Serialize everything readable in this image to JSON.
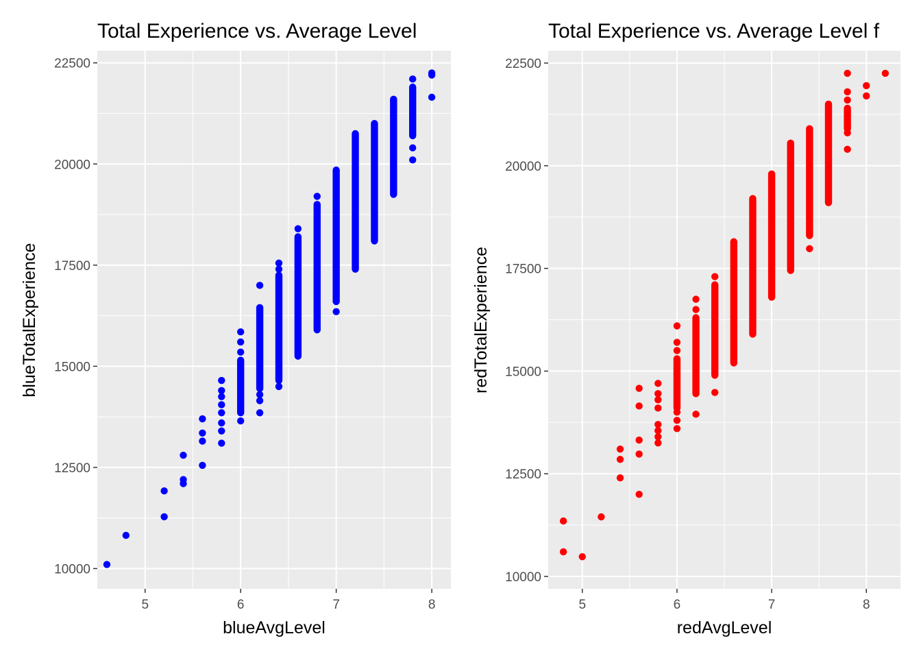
{
  "chart_data": [
    {
      "type": "scatter",
      "title": "Total Experience vs. Average Level",
      "xlabel": "blueAvgLevel",
      "ylabel": "blueTotalExperience",
      "color": "#0000ff",
      "xlim": [
        4.5,
        8.2
      ],
      "ylim": [
        9500,
        22800
      ],
      "xticks": [
        5,
        6,
        7,
        8
      ],
      "yticks": [
        10000,
        12500,
        15000,
        17500,
        20000,
        22500
      ],
      "grid": true,
      "legend": "none",
      "x_groups": [
        {
          "x": 4.6,
          "points": [
            10100
          ]
        },
        {
          "x": 4.8,
          "points": [
            10820
          ]
        },
        {
          "x": 5.2,
          "points": [
            11280,
            11920
          ]
        },
        {
          "x": 5.4,
          "points": [
            12100,
            12200,
            12800
          ]
        },
        {
          "x": 5.6,
          "points": [
            12550,
            13150,
            13350,
            13700
          ]
        },
        {
          "x": 5.8,
          "points": [
            13100,
            13400,
            13600,
            13850,
            14050,
            14250,
            14400,
            14650
          ]
        },
        {
          "x": 6.0,
          "points": [
            13650,
            15350,
            15600,
            15850
          ],
          "range": [
            13850,
            15150
          ]
        },
        {
          "x": 6.2,
          "points": [
            13850,
            14150,
            14300,
            17000
          ],
          "range": [
            14450,
            16450
          ]
        },
        {
          "x": 6.4,
          "points": [
            14500,
            17400,
            17550
          ],
          "range": [
            14650,
            17250
          ]
        },
        {
          "x": 6.6,
          "points": [
            18400
          ],
          "range": [
            15250,
            18200
          ]
        },
        {
          "x": 6.8,
          "points": [
            19200
          ],
          "range": [
            15900,
            19000
          ]
        },
        {
          "x": 7.0,
          "points": [
            16350
          ],
          "range": [
            16600,
            19850
          ]
        },
        {
          "x": 7.2,
          "points": [],
          "range": [
            17400,
            20750
          ]
        },
        {
          "x": 7.4,
          "points": [],
          "range": [
            18100,
            21000
          ]
        },
        {
          "x": 7.6,
          "points": [],
          "range": [
            19250,
            21600
          ]
        },
        {
          "x": 7.8,
          "points": [
            20100,
            20400,
            22100
          ],
          "range": [
            20700,
            21900
          ]
        },
        {
          "x": 8.0,
          "points": [
            21650,
            22200,
            22250
          ]
        }
      ]
    },
    {
      "type": "scatter",
      "title": "Total Experience vs. Average Level f",
      "xlabel": "redAvgLevel",
      "ylabel": "redTotalExperience",
      "color": "#ff0000",
      "xlim": [
        4.64,
        8.36
      ],
      "ylim": [
        9700,
        22800
      ],
      "xticks": [
        5,
        6,
        7,
        8
      ],
      "yticks": [
        10000,
        12500,
        15000,
        17500,
        20000,
        22500
      ],
      "grid": true,
      "legend": "none",
      "x_groups": [
        {
          "x": 4.8,
          "points": [
            10600,
            11350
          ]
        },
        {
          "x": 5.0,
          "points": [
            10480
          ]
        },
        {
          "x": 5.2,
          "points": [
            11450
          ]
        },
        {
          "x": 5.4,
          "points": [
            12400,
            12850,
            13100
          ]
        },
        {
          "x": 5.6,
          "points": [
            12000,
            12980,
            13320,
            14150,
            14580
          ]
        },
        {
          "x": 5.8,
          "points": [
            13250,
            13400,
            13550,
            13700,
            14100,
            14300,
            14450,
            14700
          ]
        },
        {
          "x": 6.0,
          "points": [
            13600,
            13800,
            14000,
            15500,
            15700,
            16100
          ],
          "range": [
            14100,
            15300
          ]
        },
        {
          "x": 6.2,
          "points": [
            13950,
            16500,
            16750
          ],
          "range": [
            14450,
            16300
          ]
        },
        {
          "x": 6.4,
          "points": [
            14480,
            17300
          ],
          "range": [
            14900,
            17100
          ]
        },
        {
          "x": 6.6,
          "points": [],
          "range": [
            15200,
            18150
          ]
        },
        {
          "x": 6.8,
          "points": [],
          "range": [
            15900,
            19200
          ]
        },
        {
          "x": 7.0,
          "points": [],
          "range": [
            16800,
            19800
          ]
        },
        {
          "x": 7.2,
          "points": [],
          "range": [
            17450,
            20550
          ]
        },
        {
          "x": 7.4,
          "points": [
            17980
          ],
          "range": [
            18300,
            20900
          ]
        },
        {
          "x": 7.6,
          "points": [],
          "range": [
            19100,
            21500
          ]
        },
        {
          "x": 7.8,
          "points": [
            20400,
            20800,
            21050,
            21600,
            21800,
            22250
          ],
          "range": [
            20900,
            21400
          ]
        },
        {
          "x": 8.0,
          "points": [
            21700,
            21950
          ]
        },
        {
          "x": 8.2,
          "points": [
            22250
          ]
        }
      ]
    }
  ]
}
